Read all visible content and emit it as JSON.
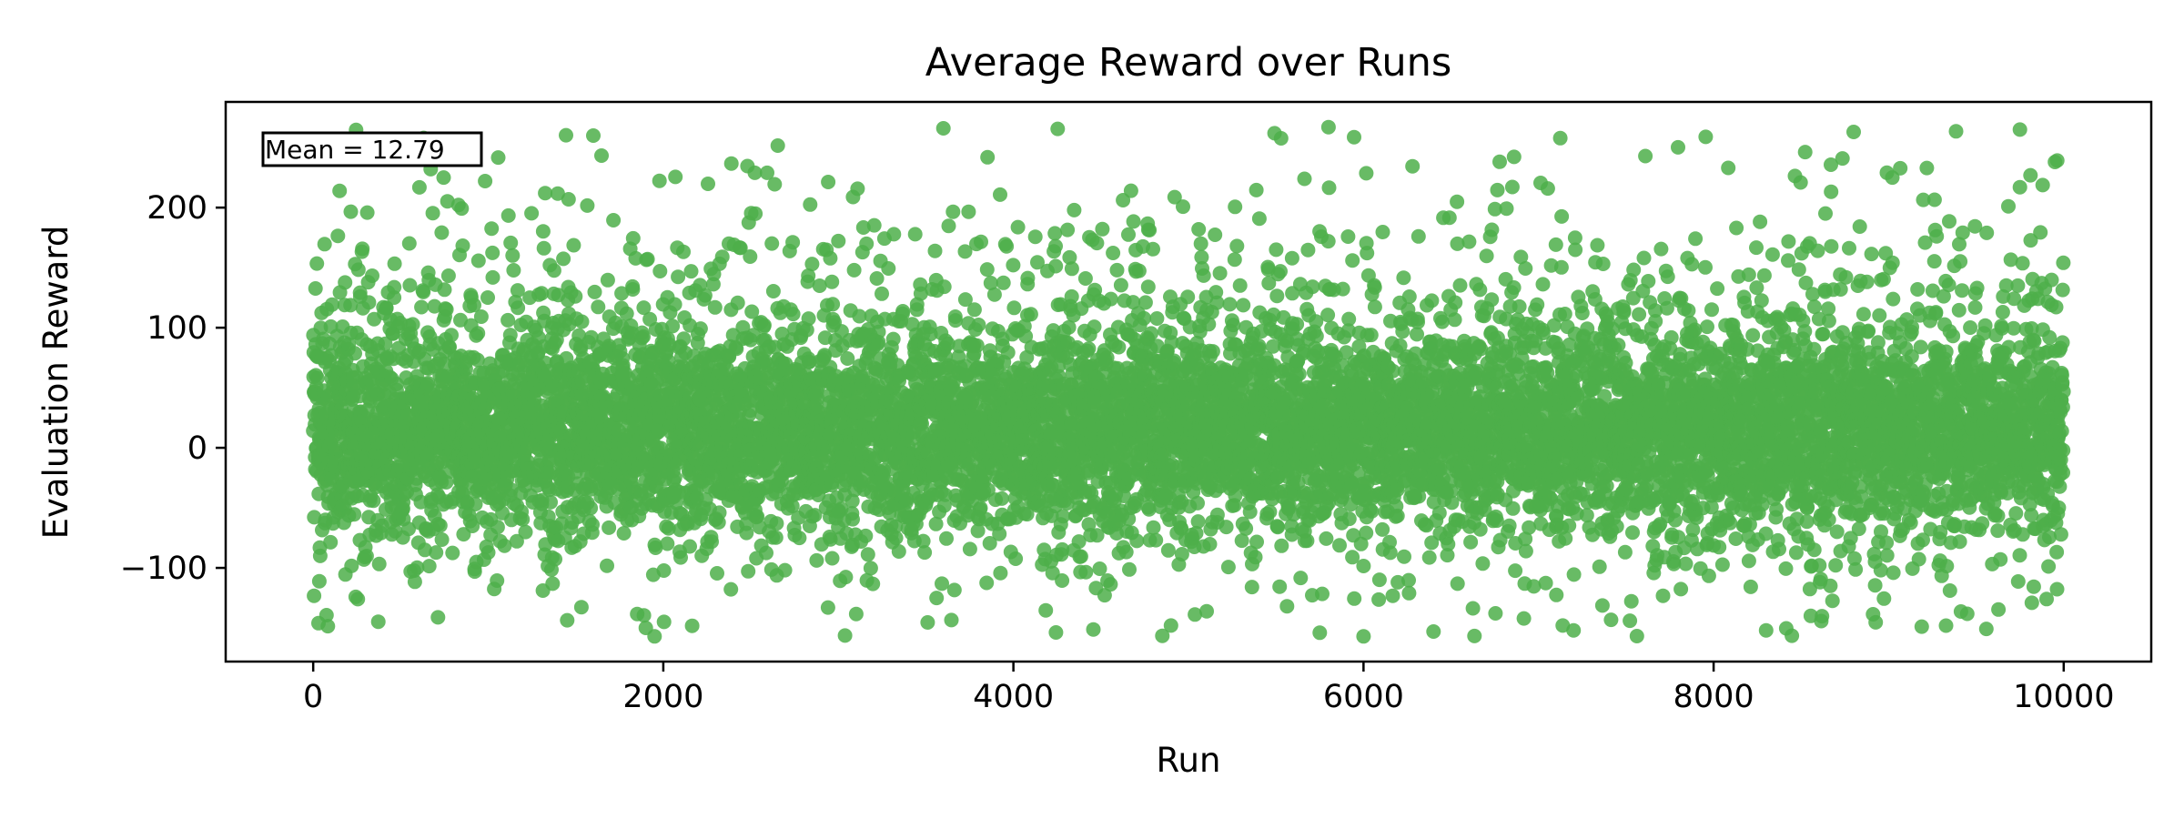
{
  "chart_data": {
    "type": "scatter",
    "title": "Average Reward over Runs",
    "xlabel": "Run",
    "ylabel": "Evaluation Reward",
    "xlim": [
      -500,
      10500
    ],
    "ylim": [
      -178,
      288
    ],
    "xticks": [
      0,
      2000,
      4000,
      6000,
      8000,
      10000
    ],
    "yticks": [
      -100,
      0,
      100,
      200
    ],
    "xtick_labels": [
      "0",
      "2000",
      "4000",
      "6000",
      "8000",
      "10000"
    ],
    "ytick_labels": [
      "−100",
      "0",
      "100",
      "200"
    ],
    "grid": false,
    "annotation": "Mean = 12.79",
    "series": [
      {
        "color": "#4daf4a",
        "alpha": 0.85,
        "n_points": 10000,
        "x_range": [
          0,
          9999
        ],
        "mean": 12.79,
        "y_min": -157,
        "y_max": 267,
        "notable_points": [
          {
            "x": 30,
            "y": -146
          },
          {
            "x": 1600,
            "y": 260
          },
          {
            "x": 1900,
            "y": -150
          },
          {
            "x": 1950,
            "y": -157
          },
          {
            "x": 3600,
            "y": 266
          },
          {
            "x": 4900,
            "y": -148
          },
          {
            "x": 5800,
            "y": 267
          },
          {
            "x": 5750,
            "y": -154
          },
          {
            "x": 6000,
            "y": -157
          },
          {
            "x": 6400,
            "y": -153
          },
          {
            "x": 7200,
            "y": -152
          },
          {
            "x": 8300,
            "y": -152
          },
          {
            "x": 8800,
            "y": 263
          },
          {
            "x": 9750,
            "y": 265
          },
          {
            "x": 9950,
            "y": 238
          }
        ]
      }
    ]
  }
}
